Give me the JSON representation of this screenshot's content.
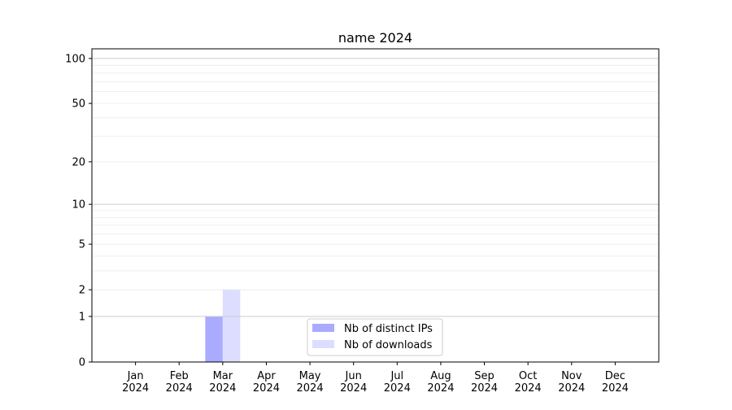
{
  "chart_data": {
    "type": "bar",
    "title": "name 2024",
    "xlabel": "",
    "ylabel": "",
    "yscale": "symlog (log of 1+y)",
    "ylim": [
      0,
      116
    ],
    "yticks": [
      0,
      1,
      2,
      5,
      10,
      20,
      50,
      100
    ],
    "grid": true,
    "legend_placement": "lower-center",
    "categories": [
      "Jan\n2024",
      "Feb\n2024",
      "Mar\n2024",
      "Apr\n2024",
      "May\n2024",
      "Jun\n2024",
      "Jul\n2024",
      "Aug\n2024",
      "Sep\n2024",
      "Oct\n2024",
      "Nov\n2024",
      "Dec\n2024"
    ],
    "series": [
      {
        "name": "Nb of distinct IPs",
        "color": "#aaaaff",
        "values": [
          0,
          0,
          1,
          0,
          0,
          0,
          0,
          0,
          0,
          0,
          0,
          0
        ]
      },
      {
        "name": "Nb of downloads",
        "color": "#ddddff",
        "values": [
          0,
          0,
          2,
          0,
          0,
          0,
          0,
          0,
          0,
          0,
          0,
          0
        ]
      }
    ]
  }
}
